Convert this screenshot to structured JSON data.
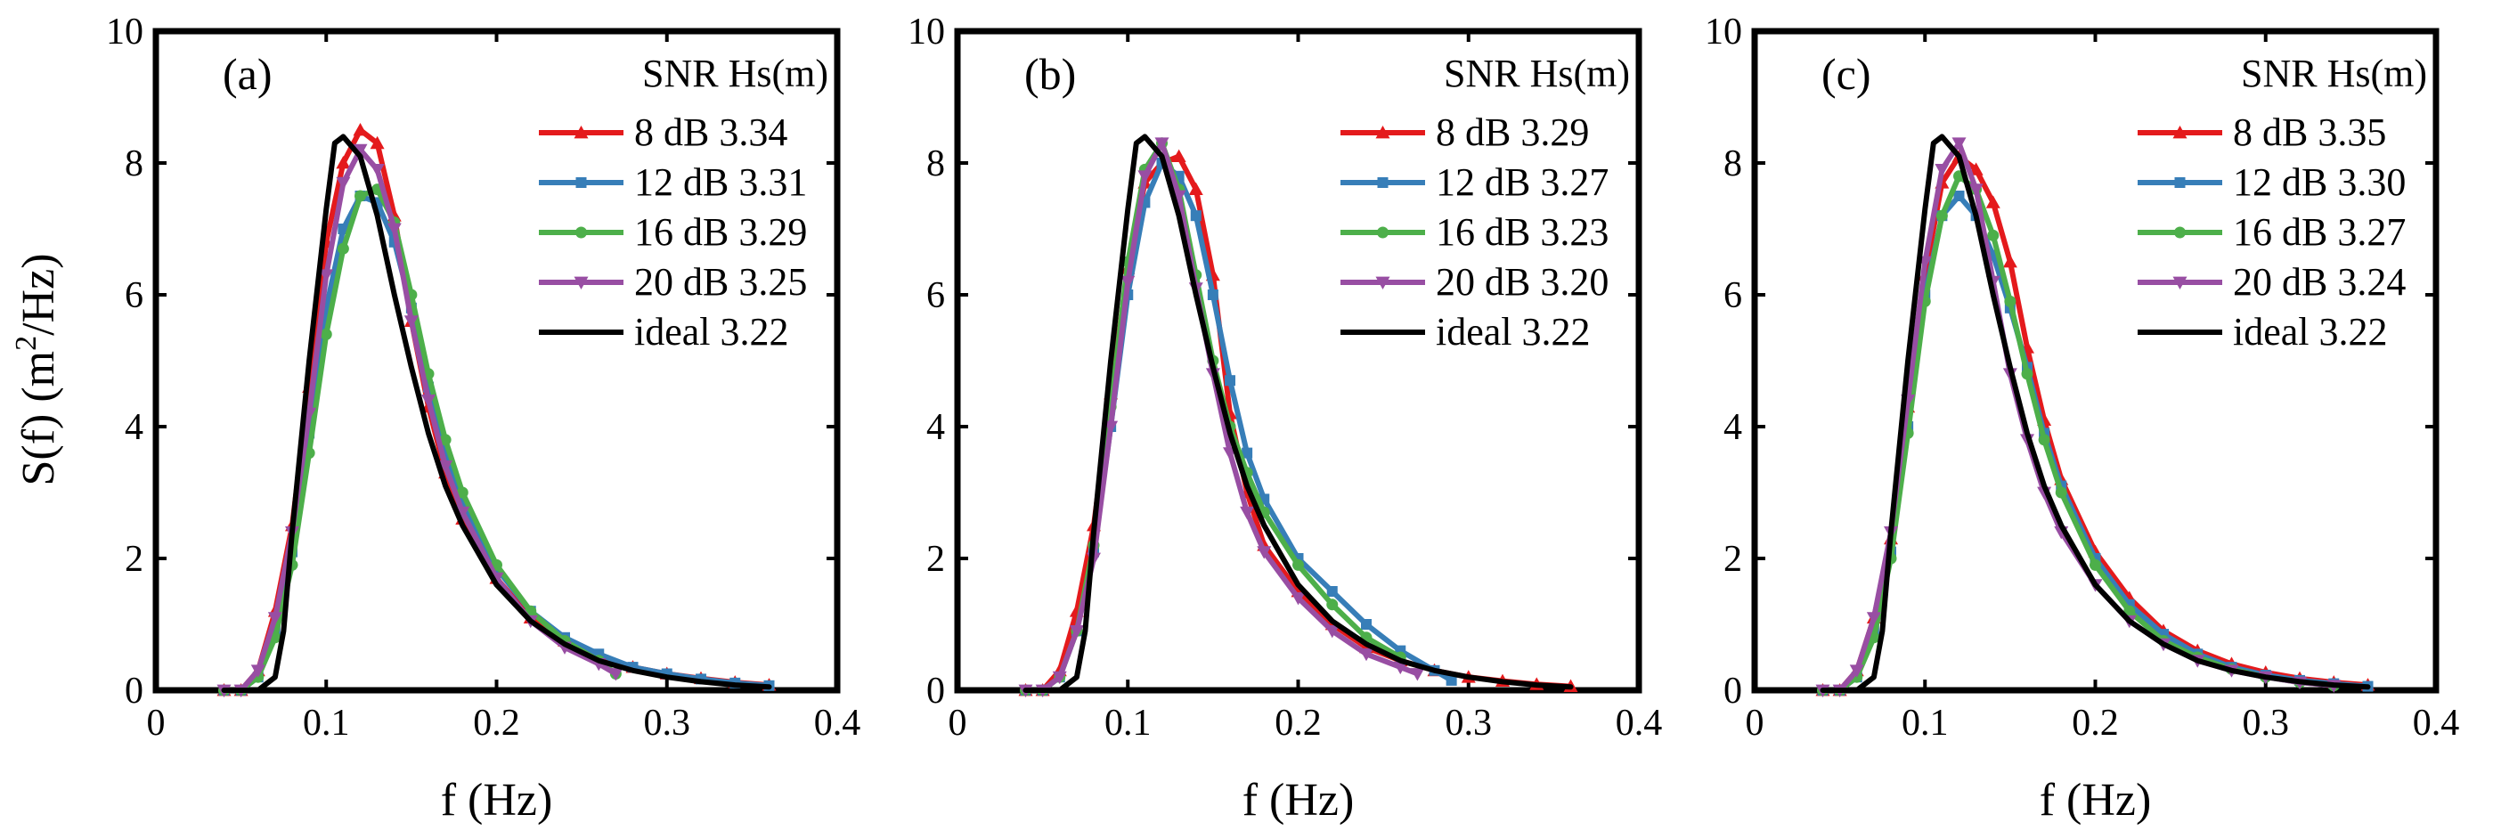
{
  "figure": {
    "ylabel_main": "S(f) (m",
    "ylabel_sup": "2",
    "ylabel_tail": "/Hz)"
  },
  "chart_data": [
    {
      "type": "line",
      "panel_label": "(a)",
      "xlabel": "f (Hz)",
      "xlim": [
        0,
        0.4
      ],
      "ylim": [
        0,
        10
      ],
      "xticks": [
        "0",
        "0.1",
        "0.2",
        "0.3",
        "0.4"
      ],
      "yticks": [
        "0",
        "2",
        "4",
        "6",
        "8",
        "10"
      ],
      "legend_title": "SNR Hs(m)",
      "legend_position": "top-right",
      "series": [
        {
          "name": " 8 dB 3.34",
          "color": "#e41a1c",
          "marker": "triangle-up",
          "x": [
            0.04,
            0.05,
            0.06,
            0.07,
            0.08,
            0.09,
            0.1,
            0.11,
            0.12,
            0.13,
            0.14,
            0.15,
            0.16,
            0.17,
            0.18,
            0.2,
            0.22,
            0.24,
            0.26,
            0.28,
            0.3,
            0.32,
            0.34,
            0.36
          ],
          "y": [
            0,
            0,
            0.3,
            1.2,
            2.5,
            4.6,
            6.8,
            8.0,
            8.5,
            8.3,
            7.2,
            5.6,
            4.3,
            3.3,
            2.6,
            1.7,
            1.1,
            0.75,
            0.5,
            0.35,
            0.25,
            0.18,
            0.12,
            0.08
          ]
        },
        {
          "name": "12 dB 3.31",
          "color": "#377eb8",
          "marker": "square",
          "x": [
            0.04,
            0.05,
            0.06,
            0.07,
            0.08,
            0.09,
            0.1,
            0.11,
            0.12,
            0.13,
            0.14,
            0.15,
            0.16,
            0.17,
            0.18,
            0.2,
            0.22,
            0.24,
            0.26,
            0.28,
            0.3,
            0.32,
            0.34,
            0.36
          ],
          "y": [
            0,
            0,
            0.2,
            0.9,
            2.1,
            3.9,
            5.8,
            7.0,
            7.5,
            7.4,
            6.8,
            5.8,
            4.6,
            3.6,
            2.8,
            1.85,
            1.2,
            0.8,
            0.55,
            0.35,
            0.25,
            0.17,
            0.11,
            0.07
          ]
        },
        {
          "name": "16 dB 3.29",
          "color": "#4daf4a",
          "marker": "circle",
          "x": [
            0.04,
            0.05,
            0.06,
            0.07,
            0.08,
            0.09,
            0.1,
            0.11,
            0.12,
            0.13,
            0.14,
            0.15,
            0.16,
            0.17,
            0.18,
            0.2,
            0.22,
            0.24,
            0.26,
            0.27
          ],
          "y": [
            0,
            0,
            0.2,
            0.8,
            1.9,
            3.6,
            5.4,
            6.7,
            7.5,
            7.6,
            7.1,
            6.0,
            4.8,
            3.8,
            3.0,
            1.9,
            1.2,
            0.75,
            0.45,
            0.25
          ]
        },
        {
          "name": "20 dB 3.25",
          "color": "#984ea3",
          "marker": "triangle-down",
          "x": [
            0.04,
            0.05,
            0.06,
            0.07,
            0.08,
            0.09,
            0.1,
            0.11,
            0.12,
            0.13,
            0.14,
            0.15,
            0.16,
            0.17,
            0.18,
            0.2,
            0.22,
            0.24,
            0.26,
            0.27
          ],
          "y": [
            0,
            0,
            0.3,
            1.1,
            2.4,
            4.2,
            6.3,
            7.7,
            8.2,
            7.9,
            7.0,
            5.6,
            4.4,
            3.4,
            2.7,
            1.7,
            1.05,
            0.65,
            0.4,
            0.25
          ]
        },
        {
          "name": "ideal  3.22",
          "color": "#000000",
          "marker": "none",
          "x": [
            0.04,
            0.06,
            0.07,
            0.075,
            0.08,
            0.09,
            0.1,
            0.105,
            0.11,
            0.12,
            0.13,
            0.14,
            0.15,
            0.16,
            0.17,
            0.18,
            0.2,
            0.22,
            0.24,
            0.26,
            0.28,
            0.3,
            0.32,
            0.34,
            0.36
          ],
          "y": [
            0,
            0,
            0.2,
            0.9,
            2.4,
            5.0,
            7.3,
            8.3,
            8.4,
            8.1,
            7.2,
            6.0,
            4.9,
            3.9,
            3.1,
            2.5,
            1.6,
            1.05,
            0.7,
            0.45,
            0.3,
            0.2,
            0.13,
            0.08,
            0.05
          ]
        }
      ]
    },
    {
      "type": "line",
      "panel_label": "(b)",
      "xlabel": "f (Hz)",
      "xlim": [
        0,
        0.4
      ],
      "ylim": [
        0,
        10
      ],
      "xticks": [
        "0",
        "0.1",
        "0.2",
        "0.3",
        "0.4"
      ],
      "yticks": [
        "0",
        "2",
        "4",
        "6",
        "8",
        "10"
      ],
      "legend_title": "SNR Hs(m)",
      "legend_position": "top-right",
      "series": [
        {
          "name": " 8 dB 3.29",
          "color": "#e41a1c",
          "marker": "triangle-up",
          "x": [
            0.04,
            0.05,
            0.06,
            0.07,
            0.08,
            0.09,
            0.1,
            0.11,
            0.12,
            0.13,
            0.14,
            0.15,
            0.16,
            0.17,
            0.18,
            0.2,
            0.22,
            0.24,
            0.26,
            0.28,
            0.3,
            0.32,
            0.34,
            0.36
          ],
          "y": [
            0,
            0,
            0.3,
            1.2,
            2.5,
            4.5,
            6.4,
            7.7,
            8.0,
            8.1,
            7.6,
            6.3,
            4.2,
            3.0,
            2.2,
            1.5,
            1.0,
            0.65,
            0.45,
            0.3,
            0.2,
            0.14,
            0.09,
            0.06
          ]
        },
        {
          "name": "12 dB 3.27",
          "color": "#377eb8",
          "marker": "square",
          "x": [
            0.04,
            0.05,
            0.06,
            0.07,
            0.08,
            0.09,
            0.1,
            0.11,
            0.12,
            0.13,
            0.14,
            0.15,
            0.16,
            0.17,
            0.18,
            0.2,
            0.22,
            0.24,
            0.26,
            0.28,
            0.29
          ],
          "y": [
            0,
            0,
            0.2,
            0.9,
            2.1,
            4.0,
            6.0,
            7.4,
            8.0,
            7.8,
            7.2,
            6.0,
            4.7,
            3.6,
            2.9,
            2.0,
            1.5,
            1.0,
            0.6,
            0.3,
            0.15
          ]
        },
        {
          "name": "16 dB 3.23",
          "color": "#4daf4a",
          "marker": "circle",
          "x": [
            0.04,
            0.05,
            0.06,
            0.07,
            0.08,
            0.09,
            0.1,
            0.11,
            0.12,
            0.13,
            0.14,
            0.15,
            0.16,
            0.17,
            0.18,
            0.2,
            0.22,
            0.24,
            0.26
          ],
          "y": [
            0,
            0,
            0.2,
            0.9,
            2.2,
            4.3,
            6.5,
            7.9,
            8.3,
            7.6,
            6.3,
            5.0,
            4.0,
            3.3,
            2.7,
            1.9,
            1.3,
            0.8,
            0.5
          ]
        },
        {
          "name": "20 dB 3.20",
          "color": "#984ea3",
          "marker": "triangle-down",
          "x": [
            0.04,
            0.05,
            0.06,
            0.07,
            0.08,
            0.09,
            0.1,
            0.11,
            0.12,
            0.13,
            0.14,
            0.15,
            0.16,
            0.17,
            0.18,
            0.2,
            0.22,
            0.24,
            0.26,
            0.27
          ],
          "y": [
            0,
            0,
            0.2,
            0.9,
            2.0,
            4.0,
            6.2,
            7.8,
            8.3,
            7.5,
            6.1,
            4.8,
            3.6,
            2.7,
            2.1,
            1.4,
            0.9,
            0.55,
            0.35,
            0.25
          ]
        },
        {
          "name": "ideal  3.22",
          "color": "#000000",
          "marker": "none",
          "x": [
            0.04,
            0.06,
            0.07,
            0.075,
            0.08,
            0.09,
            0.1,
            0.105,
            0.11,
            0.12,
            0.13,
            0.14,
            0.15,
            0.16,
            0.17,
            0.18,
            0.2,
            0.22,
            0.24,
            0.26,
            0.28,
            0.3,
            0.32,
            0.34,
            0.36
          ],
          "y": [
            0,
            0,
            0.2,
            0.9,
            2.4,
            5.0,
            7.3,
            8.3,
            8.4,
            8.1,
            7.2,
            6.0,
            4.9,
            3.9,
            3.1,
            2.5,
            1.6,
            1.05,
            0.7,
            0.45,
            0.3,
            0.2,
            0.13,
            0.08,
            0.05
          ]
        }
      ]
    },
    {
      "type": "line",
      "panel_label": "(c)",
      "xlabel": "f (Hz)",
      "xlim": [
        0,
        0.4
      ],
      "ylim": [
        0,
        10
      ],
      "xticks": [
        "0",
        "0.1",
        "0.2",
        "0.3",
        "0.4"
      ],
      "yticks": [
        "0",
        "2",
        "4",
        "6",
        "8",
        "10"
      ],
      "legend_title": "SNR Hs(m)",
      "legend_position": "top-right",
      "series": [
        {
          "name": " 8 dB 3.35",
          "color": "#e41a1c",
          "marker": "triangle-up",
          "x": [
            0.04,
            0.05,
            0.06,
            0.07,
            0.08,
            0.09,
            0.1,
            0.11,
            0.12,
            0.13,
            0.14,
            0.15,
            0.16,
            0.17,
            0.18,
            0.2,
            0.22,
            0.24,
            0.26,
            0.28,
            0.3,
            0.32,
            0.34,
            0.36
          ],
          "y": [
            0,
            0,
            0.3,
            1.1,
            2.3,
            4.3,
            6.3,
            7.7,
            8.1,
            7.9,
            7.4,
            6.5,
            5.2,
            4.1,
            3.2,
            2.1,
            1.4,
            0.9,
            0.6,
            0.4,
            0.27,
            0.18,
            0.12,
            0.08
          ]
        },
        {
          "name": "12 dB 3.30",
          "color": "#377eb8",
          "marker": "square",
          "x": [
            0.04,
            0.05,
            0.06,
            0.07,
            0.08,
            0.09,
            0.1,
            0.11,
            0.12,
            0.13,
            0.14,
            0.15,
            0.16,
            0.17,
            0.18,
            0.2,
            0.22,
            0.24,
            0.26,
            0.28,
            0.3,
            0.32,
            0.34,
            0.36
          ],
          "y": [
            0,
            0,
            0.2,
            0.9,
            2.1,
            4.0,
            6.0,
            7.2,
            7.5,
            7.2,
            6.6,
            5.8,
            4.9,
            3.9,
            3.1,
            2.0,
            1.3,
            0.85,
            0.55,
            0.35,
            0.23,
            0.15,
            0.1,
            0.06
          ]
        },
        {
          "name": "16 dB 3.27",
          "color": "#4daf4a",
          "marker": "circle",
          "x": [
            0.04,
            0.05,
            0.06,
            0.07,
            0.08,
            0.09,
            0.1,
            0.11,
            0.12,
            0.13,
            0.14,
            0.15,
            0.16,
            0.17,
            0.18,
            0.2,
            0.22,
            0.24,
            0.26,
            0.28,
            0.3,
            0.32,
            0.34
          ],
          "y": [
            0,
            0,
            0.2,
            0.8,
            2.0,
            3.9,
            5.9,
            7.2,
            7.8,
            7.6,
            6.9,
            5.9,
            4.8,
            3.8,
            3.0,
            1.9,
            1.2,
            0.75,
            0.5,
            0.32,
            0.2,
            0.12,
            0.07
          ]
        },
        {
          "name": "20 dB 3.24",
          "color": "#984ea3",
          "marker": "triangle-down",
          "x": [
            0.04,
            0.05,
            0.06,
            0.07,
            0.08,
            0.09,
            0.1,
            0.11,
            0.12,
            0.13,
            0.14,
            0.15,
            0.16,
            0.17,
            0.18,
            0.2,
            0.22,
            0.24,
            0.26,
            0.28,
            0.3,
            0.32,
            0.34
          ],
          "y": [
            0,
            0,
            0.3,
            1.1,
            2.4,
            4.4,
            6.5,
            7.9,
            8.3,
            7.6,
            6.2,
            4.8,
            3.8,
            3.0,
            2.4,
            1.6,
            1.05,
            0.7,
            0.45,
            0.3,
            0.2,
            0.12,
            0.07
          ]
        },
        {
          "name": "ideal  3.22",
          "color": "#000000",
          "marker": "none",
          "x": [
            0.04,
            0.06,
            0.07,
            0.075,
            0.08,
            0.09,
            0.1,
            0.105,
            0.11,
            0.12,
            0.13,
            0.14,
            0.15,
            0.16,
            0.17,
            0.18,
            0.2,
            0.22,
            0.24,
            0.26,
            0.28,
            0.3,
            0.32,
            0.34,
            0.36
          ],
          "y": [
            0,
            0,
            0.2,
            0.9,
            2.4,
            5.0,
            7.3,
            8.3,
            8.4,
            8.1,
            7.2,
            6.0,
            4.9,
            3.9,
            3.1,
            2.5,
            1.6,
            1.05,
            0.7,
            0.45,
            0.3,
            0.2,
            0.13,
            0.08,
            0.05
          ]
        }
      ]
    }
  ]
}
